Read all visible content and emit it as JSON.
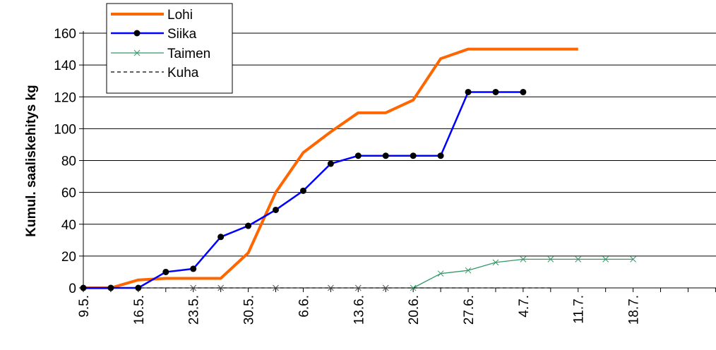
{
  "chart_data": {
    "type": "line",
    "ylabel": "Kumul. saaliskehitys kg",
    "xlabel": "",
    "ylim": [
      0,
      160
    ],
    "y_ticks": [
      "0",
      "20",
      "40",
      "60",
      "80",
      "100",
      "120",
      "140",
      "160"
    ],
    "x_tick_labels": [
      "9.5.",
      "16.5.",
      "23.5.",
      "30.5.",
      "6.6.",
      "13.6.",
      "20.6.",
      "27.6.",
      "4.7.",
      "11.7.",
      "18.7."
    ],
    "grid": "horizontal",
    "legend_position": "top-left",
    "x_dates": [
      "9.5.",
      "12.5.",
      "16.5.",
      "19.5.",
      "23.5.",
      "27.5.",
      "30.5.",
      "2.6.",
      "6.6.",
      "10.6.",
      "13.6.",
      "16.6.",
      "20.6.",
      "24.6.",
      "27.6.",
      "1.7.",
      "4.7.",
      "8.7.",
      "11.7.",
      "15.7.",
      "18.7.",
      "22.7."
    ],
    "series": [
      {
        "name": "Lohi",
        "color": "#ff6600",
        "marker": "none",
        "values": [
          0,
          0,
          5,
          6,
          6,
          6,
          22,
          60,
          85,
          98,
          110,
          110,
          118,
          144,
          150,
          150,
          150,
          150,
          150
        ]
      },
      {
        "name": "Siika",
        "color": "#0000ff",
        "marker": "dot",
        "values": [
          0,
          0,
          0,
          10,
          12,
          32,
          39,
          49,
          61,
          78,
          83,
          83,
          83,
          83,
          123,
          123,
          123
        ]
      },
      {
        "name": "Taimen",
        "color": "#339966",
        "marker": "x",
        "values": [
          0,
          9,
          11,
          16,
          18,
          18,
          18,
          18,
          18
        ]
      },
      {
        "name": "Kuha",
        "color": "#000000",
        "marker": "none",
        "dashed": true,
        "values": [
          0,
          0,
          0,
          0,
          0,
          0,
          0,
          0,
          0,
          0,
          0,
          0,
          0,
          0,
          0,
          0,
          0,
          0
        ]
      }
    ]
  }
}
